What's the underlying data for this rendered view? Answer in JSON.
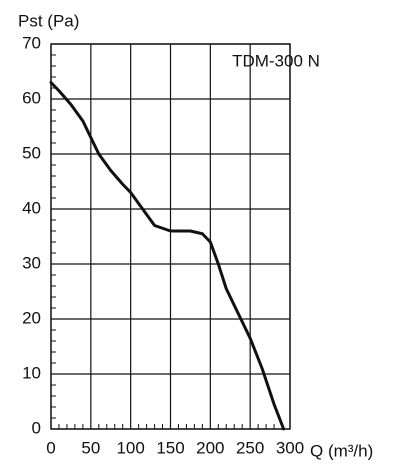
{
  "chart_data": {
    "type": "line",
    "y_label": "Pst (Pa)",
    "x_label": "Q (m³/h)",
    "annotation": "TDM-300 N",
    "x": [
      0,
      10,
      25,
      40,
      50,
      60,
      75,
      90,
      100,
      110,
      120,
      130,
      150,
      175,
      190,
      200,
      210,
      220,
      235,
      250,
      265,
      280,
      292
    ],
    "series": [
      {
        "color": "#111111",
        "values": [
          63,
          61.5,
          59,
          56,
          53,
          50,
          47,
          44.5,
          43,
          41,
          39,
          37,
          36,
          36,
          35.5,
          34,
          30,
          25.5,
          21,
          16.5,
          11,
          4.5,
          0
        ]
      }
    ],
    "xlim": [
      0,
      300
    ],
    "ylim": [
      0,
      70
    ],
    "xticks": [
      0,
      50,
      100,
      150,
      200,
      250,
      300
    ],
    "yticks": [
      0,
      10,
      20,
      30,
      40,
      50,
      60,
      70
    ],
    "grid": true
  }
}
